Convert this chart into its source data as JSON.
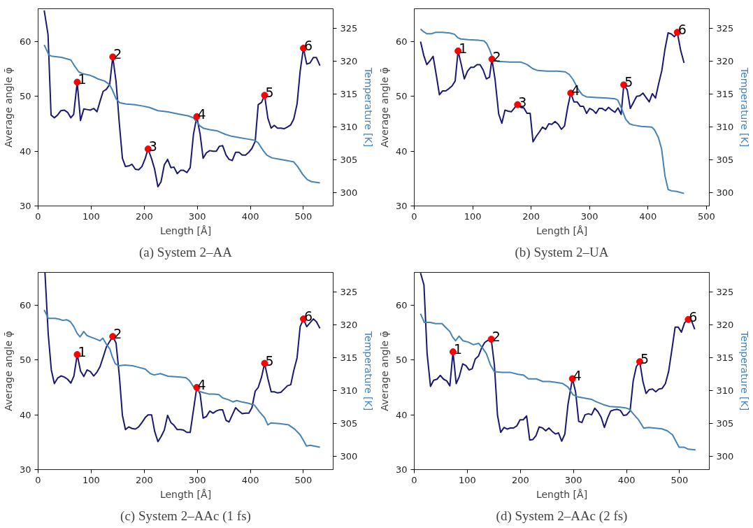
{
  "chart_data": [
    {
      "type": "line",
      "title": "(a) System 2–AA",
      "xlabel": "Length [Å]",
      "ylabel": "Average angle φ̄",
      "y2label": "Temperature [K]",
      "xlim": [
        0,
        556
      ],
      "ylim": [
        30,
        66
      ],
      "y2lim": [
        298,
        328
      ],
      "xticks": [
        0,
        100,
        200,
        300,
        400,
        500
      ],
      "yticks": [
        30,
        40,
        50,
        60
      ],
      "y2ticks": [
        300,
        305,
        310,
        315,
        320,
        325
      ],
      "series": [
        {
          "type": "line",
          "color": "#191970",
          "x": [
            11.5,
            18.7,
            24.4,
            30.6,
            36.8,
            43,
            49.3,
            55.5,
            61.7,
            67,
            73.7,
            79.9,
            86.1,
            92.3,
            98.6,
            104.8,
            111,
            116.7,
            122.5,
            128.7,
            134.9,
            140.7,
            146.9,
            153.1,
            158.9,
            164.6,
            170.8,
            177,
            183.3,
            189.5,
            195.7,
            201.9,
            207.2,
            213.9,
            219.6,
            225.8,
            231.6,
            237.8,
            244,
            250.2,
            256,
            262.2,
            268.4,
            274.2,
            280.4,
            286.6,
            292.8,
            299,
            305.3,
            311,
            317.2,
            323.4,
            329.7,
            335.9,
            341.6,
            347.8,
            354.1,
            359.8,
            366,
            372.2,
            378.5,
            384.7,
            390.9,
            397.1,
            402.9,
            409.1,
            414.8,
            421.1,
            426.8,
            433,
            439.2,
            445,
            451.2,
            457.4,
            463.6,
            469.9,
            476.1,
            481.8,
            488,
            493.8,
            500,
            506.2,
            512.4,
            518.7,
            524.4,
            531.1
          ],
          "values": [
            65.7,
            61.3,
            46.6,
            46.1,
            46.6,
            47.4,
            47.5,
            47.1,
            46.1,
            46.7,
            52.6,
            45.6,
            47.7,
            47.6,
            47.5,
            47.8,
            47.2,
            49.1,
            50.9,
            51.3,
            52.2,
            57.2,
            52.7,
            45.0,
            38.7,
            37.2,
            37.3,
            37.6,
            36.7,
            36.6,
            37.2,
            38.7,
            40.4,
            38.6,
            36.7,
            33.5,
            34.4,
            37.5,
            38.5,
            37.0,
            37.1,
            35.9,
            36.5,
            36.5,
            36.1,
            37.0,
            43.1,
            46.3,
            43.1,
            38.7,
            39.7,
            40.1,
            40.0,
            40.0,
            40.9,
            41.0,
            39.3,
            38.5,
            38.3,
            39.8,
            39.8,
            39.3,
            39.3,
            39.8,
            40.5,
            41.8,
            48.5,
            48.9,
            50.2,
            46.0,
            44.2,
            44.7,
            44.2,
            44.2,
            44.1,
            44.4,
            44.8,
            45.9,
            48.6,
            54.6,
            58.8,
            55.9,
            56.1,
            57.1,
            57.1,
            55.6
          ]
        },
        {
          "type": "line",
          "axis": "y2",
          "color": "#4682b4",
          "x": [
            11.5,
            20.1,
            24.9,
            44,
            53.6,
            61.7,
            67.9,
            76.6,
            84.7,
            96.7,
            106.2,
            113.4,
            125.4,
            134,
            139.7,
            146.9,
            154,
            166,
            182.8,
            197.1,
            209.1,
            225.8,
            245,
            264.1,
            283.3,
            292.8,
            304.8,
            312,
            323.9,
            338.3,
            352.6,
            364.6,
            378.9,
            393.3,
            407.7,
            414.8,
            424.4,
            431.6,
            441.1,
            455.5,
            469.9,
            481.8,
            489,
            498.6,
            507.2,
            515.3,
            531.1
          ],
          "values": [
            322.5,
            321.0,
            320.8,
            320.6,
            320.4,
            320.2,
            319.4,
            318.4,
            318.1,
            317.9,
            317.6,
            317.3,
            317.0,
            316.5,
            315.7,
            314.3,
            313.7,
            313.5,
            313.4,
            313.2,
            313.0,
            312.5,
            312.3,
            312.0,
            311.7,
            311.4,
            310.2,
            309.8,
            309.6,
            309.4,
            308.9,
            308.6,
            308.4,
            308.2,
            308.0,
            307.6,
            306.4,
            305.7,
            305.3,
            305.1,
            304.9,
            304.7,
            304.0,
            302.8,
            302.0,
            301.7,
            301.5
          ]
        },
        {
          "type": "scatter",
          "marker": "circle",
          "color": "#ff0000",
          "x": [
            73.7,
            140.7,
            207.2,
            299,
            426.8,
            500
          ],
          "values": [
            52.6,
            57.2,
            40.4,
            46.3,
            50.2,
            58.8
          ]
        }
      ],
      "annotations": [
        {
          "text": "1",
          "x": 73.7,
          "y": 52.6
        },
        {
          "text": "2",
          "x": 140.7,
          "y": 57.2
        },
        {
          "text": "3",
          "x": 207.2,
          "y": 40.4
        },
        {
          "text": "4",
          "x": 299,
          "y": 46.3
        },
        {
          "text": "5",
          "x": 426.8,
          "y": 50.2
        },
        {
          "text": "6",
          "x": 500,
          "y": 58.8
        }
      ]
    },
    {
      "type": "line",
      "title": "(b) System 2–UA",
      "xlabel": "Length [Å]",
      "ylabel": "Average angle φ̄",
      "y2label": "Temperature [K]",
      "xlim": [
        0,
        505
      ],
      "ylim": [
        30,
        66
      ],
      "y2lim": [
        298,
        328
      ],
      "xticks": [
        0,
        100,
        200,
        300,
        400,
        500
      ],
      "yticks": [
        30,
        40,
        50,
        60
      ],
      "y2ticks": [
        300,
        305,
        310,
        315,
        320,
        325
      ],
      "series": [
        {
          "type": "line",
          "color": "#191970",
          "x": [
            10.8,
            16.2,
            21.5,
            26.9,
            32.3,
            37.7,
            43.1,
            48.5,
            53.9,
            59.2,
            64.6,
            70,
            75,
            80.3,
            85.7,
            91.1,
            96.5,
            101.9,
            107.3,
            112.7,
            118,
            123.4,
            128.8,
            132.9,
            138.2,
            144.5,
            149.9,
            155.3,
            160.7,
            166.1,
            171.5,
            176.8,
            182.2,
            187.6,
            193,
            198.4,
            203.3,
            208.7,
            214.1,
            219.5,
            224.9,
            230.3,
            235.6,
            241,
            246.4,
            251.8,
            257.2,
            262.6,
            267.9,
            273.3,
            278.7,
            284.1,
            289.5,
            294.9,
            300.3,
            305.7,
            311,
            316.4,
            321.8,
            327.2,
            332.6,
            338,
            343.4,
            348.7,
            354.1,
            358.6,
            364.5,
            369.8,
            375.2,
            380.6,
            386,
            391.4,
            396.8,
            402.2,
            407.5,
            412.9,
            418.3,
            423.7,
            429.1,
            434.5,
            439.9,
            445.3,
            450.2,
            456,
            461.8
          ],
          "values": [
            60.0,
            57.5,
            55.8,
            56.5,
            57.3,
            53.9,
            50.3,
            51.0,
            51.0,
            51.4,
            51.9,
            52.8,
            58.3,
            55.9,
            53.2,
            54.6,
            55.3,
            55.3,
            55.8,
            55.8,
            54.8,
            53.2,
            53.5,
            56.8,
            53.2,
            46.8,
            45.1,
            47.5,
            47.3,
            47.2,
            47.9,
            48.5,
            48.0,
            47.9,
            46.9,
            46.9,
            41.7,
            42.7,
            43.5,
            44.4,
            44.0,
            45.0,
            44.9,
            45.4,
            44.9,
            44.0,
            44.6,
            48.0,
            50.6,
            49.0,
            49.0,
            48.2,
            48.2,
            46.9,
            47.8,
            47.5,
            46.9,
            47.8,
            47.8,
            47.4,
            48.0,
            47.5,
            47.1,
            47.9,
            46.7,
            52.1,
            51.2,
            47.8,
            48.9,
            50.0,
            50.1,
            50.6,
            49.8,
            49.0,
            50.5,
            49.7,
            52.3,
            54.7,
            58.6,
            61.6,
            61.4,
            60.9,
            61.7,
            58.4,
            56.1
          ]
        },
        {
          "type": "line",
          "axis": "y2",
          "color": "#4682b4",
          "x": [
            10.8,
            16.2,
            21.5,
            29.6,
            36.4,
            47.6,
            61,
            69.1,
            74.5,
            79.9,
            92.5,
            110.4,
            119.4,
            123.9,
            128.4,
            135.1,
            141.8,
            164.3,
            182.2,
            193.4,
            202.4,
            211.4,
            227.1,
            245.1,
            258.5,
            265.3,
            272,
            281,
            287.7,
            294.5,
            312.4,
            330.3,
            343.8,
            348.3,
            355,
            361.8,
            368.5,
            375.2,
            388.7,
            406.6,
            411.1,
            417.9,
            423.3,
            429.1,
            434.5,
            440.4,
            449.3,
            461.8
          ],
          "values": [
            324.9,
            324.5,
            324.2,
            324.2,
            324.4,
            324.4,
            324.3,
            324.1,
            323.6,
            323.4,
            323.3,
            323.2,
            323.1,
            322.7,
            321.9,
            320.3,
            320.0,
            319.9,
            319.9,
            319.5,
            318.9,
            318.6,
            318.5,
            318.5,
            318.4,
            318.0,
            317.2,
            315.7,
            314.9,
            314.6,
            314.5,
            314.4,
            314.3,
            314.1,
            312.8,
            311.2,
            310.5,
            310.3,
            310.1,
            310.0,
            309.6,
            308.4,
            306.7,
            302.6,
            300.5,
            300.3,
            300.2,
            299.9
          ]
        },
        {
          "type": "scatter",
          "marker": "circle",
          "color": "#ff0000",
          "x": [
            75,
            132.9,
            176.8,
            267.9,
            358.6,
            450.2
          ],
          "values": [
            58.3,
            56.8,
            48.5,
            50.6,
            52.1,
            61.7
          ]
        }
      ],
      "annotations": [
        {
          "text": "1",
          "x": 75,
          "y": 58.3
        },
        {
          "text": "2",
          "x": 132.9,
          "y": 56.8
        },
        {
          "text": "3",
          "x": 176.8,
          "y": 48.5
        },
        {
          "text": "4",
          "x": 267.9,
          "y": 50.6
        },
        {
          "text": "5",
          "x": 358.6,
          "y": 52.1
        },
        {
          "text": "6",
          "x": 450.2,
          "y": 61.7
        }
      ]
    },
    {
      "type": "line",
      "title": "(c) System 2–AAc (1 fs)",
      "xlabel": "Length [Å]",
      "ylabel": "Average angle φ̄",
      "y2label": "Temperature [K]",
      "xlim": [
        0,
        556
      ],
      "ylim": [
        30,
        66
      ],
      "y2lim": [
        298,
        328
      ],
      "xticks": [
        0,
        100,
        200,
        300,
        400,
        500
      ],
      "yticks": [
        30,
        40,
        50,
        60
      ],
      "y2ticks": [
        300,
        305,
        310,
        315,
        320,
        325
      ],
      "series": [
        {
          "type": "line",
          "color": "#191970",
          "x": [
            12.9,
            19.1,
            24.9,
            30.6,
            36.8,
            43.1,
            49.3,
            55.5,
            61.7,
            67.5,
            73.7,
            79.9,
            86.1,
            92.3,
            98.6,
            104.8,
            111,
            116.7,
            122.5,
            128.7,
            134.9,
            140.7,
            146.9,
            153.1,
            158.9,
            164.6,
            170.8,
            177,
            183.3,
            189.5,
            195.7,
            201.9,
            207.2,
            213.9,
            219.6,
            225.8,
            231.6,
            237.8,
            244,
            250.2,
            256,
            262.2,
            268.4,
            274.2,
            280.4,
            286.6,
            292.8,
            299,
            305.3,
            311,
            317.2,
            323.4,
            329.7,
            335.9,
            341.6,
            347.8,
            354.1,
            359.8,
            366,
            372.2,
            378.5,
            384.7,
            390.9,
            397.1,
            402.9,
            409.1,
            414.8,
            421.1,
            426.8,
            433,
            439.2,
            445,
            451.2,
            457.4,
            463.6,
            469.9,
            476.1,
            481.8,
            488,
            493.8,
            500,
            506.2,
            512.4,
            518.7,
            524.4,
            531.1
          ],
          "values": [
            66.0,
            54.7,
            48.2,
            45.7,
            46.7,
            47.1,
            46.9,
            46.5,
            45.8,
            47.1,
            51.0,
            48.0,
            47.0,
            48.2,
            47.9,
            47.1,
            47.8,
            48.8,
            50.5,
            52.4,
            53.4,
            54.3,
            53.1,
            47.1,
            39.9,
            37.3,
            37.8,
            37.5,
            37.4,
            37.8,
            38.6,
            39.5,
            40.0,
            40.0,
            37.0,
            35.1,
            36.0,
            37.2,
            39.9,
            38.6,
            38.1,
            37.3,
            37.3,
            37.2,
            36.8,
            36.8,
            40.9,
            45.0,
            43.8,
            39.4,
            39.7,
            40.7,
            40.3,
            40.7,
            40.9,
            40.9,
            39.0,
            38.7,
            40.0,
            41.3,
            40.7,
            40.2,
            40.3,
            40.3,
            41.3,
            44.3,
            45.0,
            46.9,
            49.4,
            46.6,
            44.2,
            44.2,
            44.0,
            44.1,
            44.7,
            45.3,
            45.5,
            48.1,
            50.4,
            56.1,
            57.5,
            56.1,
            56.8,
            57.5,
            57.0,
            55.8
          ]
        },
        {
          "type": "line",
          "axis": "y2",
          "color": "#4682b4",
          "x": [
            11.5,
            19.1,
            32.1,
            39.2,
            46.4,
            53.6,
            60.8,
            67,
            73.7,
            79,
            86.1,
            91.9,
            101.4,
            111,
            116.7,
            122,
            129.2,
            134.9,
            139.7,
            145.5,
            151.7,
            163.6,
            177.9,
            187.6,
            201.9,
            211.5,
            218.7,
            230.6,
            245,
            264.1,
            278.5,
            285.6,
            292.8,
            300,
            311.9,
            321.5,
            331.1,
            340.7,
            347.8,
            359.8,
            367,
            374.2,
            383.7,
            395.7,
            407.7,
            417.2,
            426.8,
            433,
            438.8,
            455.5,
            472.2,
            484.2,
            493.8,
            500.9,
            505.7,
            512.9,
            531.1
          ],
          "values": [
            322.3,
            321.0,
            321.0,
            320.9,
            320.7,
            320.8,
            320.5,
            319.8,
            318.7,
            318.2,
            319.0,
            318.4,
            318.1,
            317.8,
            317.6,
            318.0,
            317.0,
            316.4,
            315.2,
            314.1,
            313.8,
            313.9,
            313.8,
            313.6,
            313.3,
            312.6,
            312.4,
            312.6,
            312.2,
            312.1,
            312.0,
            311.5,
            310.6,
            310.0,
            309.7,
            309.5,
            309.5,
            309.4,
            308.9,
            308.6,
            308.3,
            308.5,
            308.3,
            308.1,
            307.8,
            306.8,
            305.9,
            304.8,
            305.1,
            305.0,
            304.8,
            304.1,
            303.3,
            302.3,
            301.6,
            301.7,
            301.4
          ]
        },
        {
          "type": "scatter",
          "marker": "circle",
          "color": "#ff0000",
          "x": [
            73.7,
            140.7,
            299,
            426.8,
            500
          ],
          "values": [
            51.0,
            54.3,
            45.0,
            49.4,
            57.5
          ]
        }
      ],
      "annotations": [
        {
          "text": "1",
          "x": 73.7,
          "y": 51.0
        },
        {
          "text": "2",
          "x": 140.7,
          "y": 54.3
        },
        {
          "text": "4",
          "x": 299,
          "y": 45.0
        },
        {
          "text": "5",
          "x": 426.8,
          "y": 49.4
        },
        {
          "text": "6",
          "x": 500,
          "y": 57.5
        }
      ]
    },
    {
      "type": "line",
      "title": "(d) System 2–AAc (2 fs)",
      "xlabel": "Length [Å]",
      "ylabel": "Average angle φ̄",
      "y2label": "Temperature [K]",
      "xlim": [
        0,
        556
      ],
      "ylim": [
        30,
        66
      ],
      "y2lim": [
        298,
        328
      ],
      "xticks": [
        0,
        100,
        200,
        300,
        400,
        500
      ],
      "yticks": [
        30,
        40,
        50,
        60
      ],
      "y2ticks": [
        300,
        305,
        310,
        315,
        320,
        325
      ],
      "series": [
        {
          "type": "line",
          "color": "#191970",
          "x": [
            11.8,
            18.3,
            24.2,
            30.6,
            36.5,
            42.9,
            48.9,
            55.3,
            61.2,
            67.1,
            73,
            79,
            84.9,
            91.3,
            97.2,
            103.2,
            109.1,
            115,
            120.9,
            126.9,
            132.8,
            138.7,
            145.1,
            151,
            156.9,
            162.9,
            169.3,
            175.2,
            181.1,
            187.1,
            193.5,
            199.4,
            205.3,
            211.7,
            217.6,
            223.6,
            229.5,
            235.4,
            241.8,
            247.8,
            253.7,
            259.6,
            266,
            271.9,
            277.9,
            283.8,
            289.7,
            298.1,
            304,
            309.9,
            315.9,
            321.8,
            328.2,
            334.2,
            340.1,
            346,
            352.4,
            358.3,
            364.3,
            370.2,
            376.1,
            382.5,
            388.4,
            394.4,
            400.3,
            406.7,
            412.6,
            418.5,
            424.9,
            430.9,
            436.8,
            442.7,
            449.1,
            455.1,
            461,
            466.9,
            473.3,
            479.3,
            485.2,
            491.6,
            497.5,
            503.5,
            509.4,
            516.3,
            522.7,
            528.6
          ],
          "values": [
            65.9,
            63.7,
            51.2,
            45.2,
            46.3,
            46.5,
            47.2,
            46.5,
            46.2,
            45.3,
            51.5,
            45.7,
            47.0,
            49.3,
            49.0,
            48.2,
            48.4,
            50.2,
            50.7,
            52.2,
            53.2,
            53.6,
            53.8,
            49.1,
            39.9,
            36.8,
            37.7,
            37.4,
            37.6,
            37.6,
            38.0,
            39.1,
            39.1,
            39.8,
            35.4,
            35.5,
            36.2,
            37.8,
            37.6,
            37.1,
            37.6,
            37.0,
            36.5,
            36.7,
            35.2,
            36.5,
            41.9,
            46.6,
            44.2,
            38.8,
            38.6,
            40.0,
            40.2,
            40.0,
            41.2,
            40.6,
            39.5,
            37.7,
            39.4,
            40.7,
            40.9,
            41.0,
            40.8,
            39.9,
            40.0,
            40.7,
            46.2,
            48.8,
            49.7,
            46.1,
            43.9,
            44.6,
            44.7,
            44.2,
            44.7,
            44.8,
            45.7,
            47.9,
            51.7,
            56.0,
            56.0,
            55.1,
            56.8,
            57.4,
            57.1,
            55.6
          ]
        },
        {
          "type": "line",
          "axis": "y2",
          "color": "#4682b4",
          "x": [
            11.8,
            18.8,
            30.1,
            40,
            52.3,
            59.7,
            67.1,
            72,
            77.9,
            84.4,
            91.8,
            101.7,
            111.5,
            121.4,
            128.8,
            136.2,
            143.6,
            151,
            165.8,
            180.6,
            195.5,
            205.3,
            215.2,
            230,
            242.3,
            254.7,
            264.6,
            279.4,
            289.2,
            299.1,
            306.5,
            318.9,
            333.7,
            343.5,
            355.9,
            368.2,
            387.9,
            397.8,
            405.2,
            412.6,
            422.5,
            432.4,
            442.3,
            454.6,
            466.9,
            476.8,
            486.7,
            499,
            508.9,
            516.3,
            530.1
          ],
          "values": [
            321.7,
            320.4,
            320.4,
            320.2,
            320.2,
            319.6,
            319.0,
            318.2,
            317.6,
            318.3,
            317.6,
            317.4,
            317.0,
            317.2,
            316.5,
            315.6,
            313.9,
            312.9,
            312.8,
            312.8,
            312.5,
            312.4,
            311.8,
            311.8,
            311.4,
            311.4,
            311.3,
            311.1,
            310.6,
            309.4,
            309.1,
            308.9,
            308.7,
            308.3,
            307.9,
            307.6,
            307.5,
            307.4,
            307.2,
            306.5,
            305.6,
            304.3,
            304.4,
            304.3,
            304.2,
            303.9,
            303.3,
            301.4,
            301.4,
            301.1,
            301.0
          ]
        },
        {
          "type": "scatter",
          "marker": "circle",
          "color": "#ff0000",
          "x": [
            73,
            145.1,
            298.1,
            424.9,
            516.3
          ],
          "values": [
            51.5,
            53.8,
            46.6,
            49.7,
            57.4
          ]
        }
      ],
      "annotations": [
        {
          "text": "1",
          "x": 73,
          "y": 51.5
        },
        {
          "text": "2",
          "x": 145.1,
          "y": 53.8
        },
        {
          "text": "4",
          "x": 298.1,
          "y": 46.6
        },
        {
          "text": "5",
          "x": 424.9,
          "y": 49.7
        },
        {
          "text": "6",
          "x": 516.3,
          "y": 57.4
        }
      ]
    }
  ]
}
